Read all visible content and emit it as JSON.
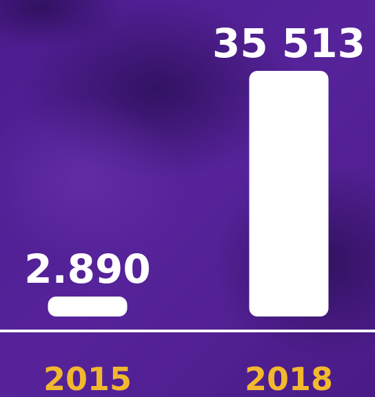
{
  "chart_data": {
    "type": "bar",
    "categories": [
      "2015",
      "2018"
    ],
    "values": [
      2890,
      35513
    ],
    "value_labels": [
      "2.890",
      "35 513"
    ],
    "color": "#ffffff",
    "category_color": "#f2b82e"
  }
}
